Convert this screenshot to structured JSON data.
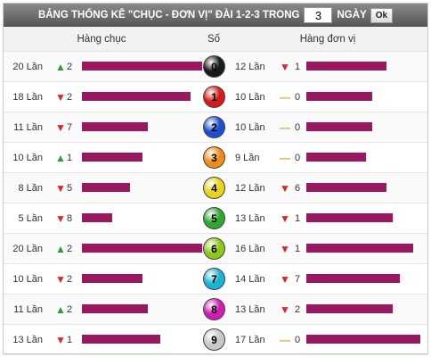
{
  "header": {
    "title": "BẢNG THỐNG KÊ \"CHỤC - ĐƠN VỊ\" ĐÀI 1-2-3 TRONG",
    "days_value": "3",
    "days_label": "NGÀY",
    "ok_label": "Ok"
  },
  "columns": {
    "left": "Hàng chục",
    "mid": "Số",
    "right": "Hàng đơn vị"
  },
  "rows": [
    {
      "digit": "0",
      "ball_color": "#1a1a1a",
      "left": {
        "count": "20 Lần",
        "trend": "up",
        "change": "2",
        "bar": 1.0
      },
      "right": {
        "count": "12 Lần",
        "trend": "down",
        "change": "1",
        "bar": 0.7
      }
    },
    {
      "digit": "1",
      "ball_color": "#d41a1a",
      "left": {
        "count": "18 Lần",
        "trend": "down",
        "change": "2",
        "bar": 0.9
      },
      "right": {
        "count": "10 Lần",
        "trend": "flat",
        "change": "0",
        "bar": 0.58
      }
    },
    {
      "digit": "2",
      "ball_color": "#1a4fd0",
      "left": {
        "count": "11 Lần",
        "trend": "down",
        "change": "7",
        "bar": 0.55
      },
      "right": {
        "count": "10 Lần",
        "trend": "flat",
        "change": "0",
        "bar": 0.58
      }
    },
    {
      "digit": "3",
      "ball_color": "#f08c1a",
      "left": {
        "count": "10 Lần",
        "trend": "up",
        "change": "1",
        "bar": 0.5
      },
      "right": {
        "count": "9 Lần",
        "trend": "flat",
        "change": "0",
        "bar": 0.52
      }
    },
    {
      "digit": "4",
      "ball_color": "#e8d21a",
      "left": {
        "count": "8 Lần",
        "trend": "down",
        "change": "5",
        "bar": 0.4
      },
      "right": {
        "count": "12 Lần",
        "trend": "down",
        "change": "6",
        "bar": 0.7
      }
    },
    {
      "digit": "5",
      "ball_color": "#2ea82e",
      "left": {
        "count": "5 Lần",
        "trend": "down",
        "change": "8",
        "bar": 0.25
      },
      "right": {
        "count": "13 Lần",
        "trend": "down",
        "change": "1",
        "bar": 0.76
      }
    },
    {
      "digit": "6",
      "ball_color": "#8cc81a",
      "left": {
        "count": "20 Lần",
        "trend": "up",
        "change": "2",
        "bar": 1.0
      },
      "right": {
        "count": "16 Lần",
        "trend": "down",
        "change": "1",
        "bar": 0.94
      }
    },
    {
      "digit": "7",
      "ball_color": "#1ab4d2",
      "left": {
        "count": "10 Lần",
        "trend": "down",
        "change": "2",
        "bar": 0.5
      },
      "right": {
        "count": "14 Lần",
        "trend": "down",
        "change": "7",
        "bar": 0.82
      }
    },
    {
      "digit": "8",
      "ball_color": "#d21ab4",
      "left": {
        "count": "11 Lần",
        "trend": "up",
        "change": "2",
        "bar": 0.55
      },
      "right": {
        "count": "13 Lần",
        "trend": "down",
        "change": "2",
        "bar": 0.76
      }
    },
    {
      "digit": "9",
      "ball_color": "#c8c8c8",
      "left": {
        "count": "13 Lần",
        "trend": "down",
        "change": "1",
        "bar": 0.65
      },
      "right": {
        "count": "17 Lần",
        "trend": "flat",
        "change": "0",
        "bar": 1.0
      }
    }
  ]
}
